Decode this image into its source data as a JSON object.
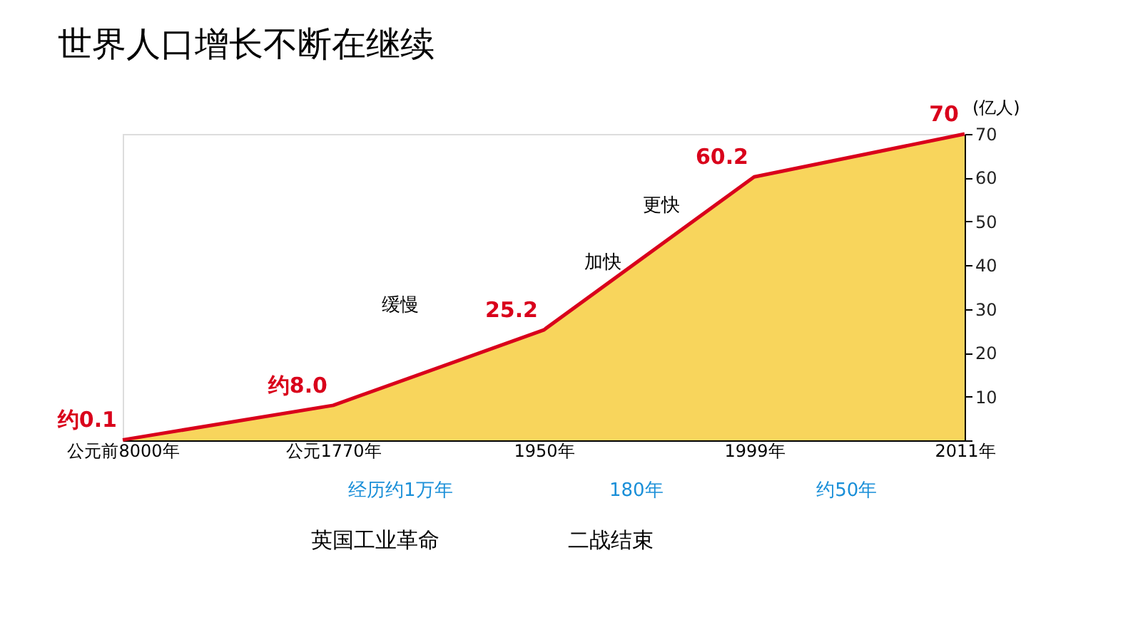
{
  "chart_data": {
    "type": "area",
    "title": "世界人口增长不断在继续",
    "ylabel": "(亿人)",
    "categories": [
      "公元前8000年",
      "公元1770年",
      "1950年",
      "1999年",
      "2011年"
    ],
    "series": [
      {
        "color": "#d9001b",
        "values": [
          0.1,
          8.0,
          25.2,
          60.2,
          70
        ],
        "value_labels": [
          "约0.1",
          "约8.0",
          "25.2",
          "60.2",
          "70"
        ]
      }
    ],
    "ylim": [
      0,
      70
    ],
    "yticks": [
      {
        "value": 0,
        "label": null
      },
      10,
      20,
      30,
      40,
      50,
      60,
      70
    ],
    "annotations": [
      "缓慢",
      "加快",
      "更快",
      "英国工业革命",
      "二战结束",
      "经历约1万年",
      "180年",
      "约50年"
    ],
    "grid": false
  }
}
